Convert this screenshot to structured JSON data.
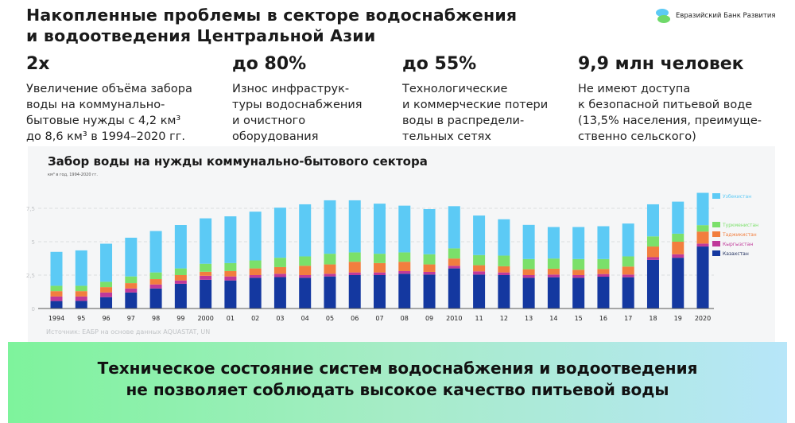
{
  "header": {
    "title_line1": "Накопленные проблемы в секторе водоснабжения",
    "title_line2": "и водоотведения Центральной Азии",
    "logo_text": "Евразийский Банк Развития"
  },
  "stats": [
    {
      "value": "2x",
      "lines": [
        "Увеличение объёма забора",
        "воды на коммунально-",
        "бытовые нужды с 4,2 км³",
        "до 8,6 км³ в 1994–2020 гг."
      ]
    },
    {
      "value": "до 80%",
      "lines": [
        "Износ инфраструк-",
        "туры водоснабжения",
        "и очистного",
        "оборудования"
      ]
    },
    {
      "value": "до 55%",
      "lines": [
        "Технологические",
        "и коммерческие потери",
        "воды в распредели-",
        "тельных сетях"
      ]
    },
    {
      "value": "9,9 млн человек",
      "lines": [
        "Не имеют доступа",
        "к безопасной питьевой воде",
        "(13,5% населения, преимуще-",
        "ственно сельского)"
      ]
    }
  ],
  "chart_data": {
    "type": "bar",
    "stacked": true,
    "title": "Забор воды на нужды коммунально-бытового сектора",
    "subtitle": "км³ в год, 1994-2020 гг.",
    "source": "Источник: ЕАБР на основе данных AQUASTAT, UN",
    "xlabel": "",
    "ylabel": "",
    "ylim": [
      0,
      9
    ],
    "yticks": [
      "0",
      "2,5",
      "5",
      "7,5"
    ],
    "ytick_values": [
      0,
      2.5,
      5,
      7.5
    ],
    "grid": true,
    "legend_position": "right",
    "categories": [
      "1994",
      "95",
      "96",
      "97",
      "98",
      "99",
      "2000",
      "01",
      "02",
      "03",
      "04",
      "05",
      "06",
      "07",
      "08",
      "09",
      "2010",
      "11",
      "12",
      "13",
      "14",
      "15",
      "16",
      "17",
      "18",
      "19",
      "2020"
    ],
    "series": [
      {
        "name": "Казахстан",
        "color": "#1438a0",
        "values": [
          0.56,
          0.57,
          0.85,
          1.2,
          1.5,
          1.85,
          2.15,
          2.1,
          2.3,
          2.35,
          2.3,
          2.4,
          2.5,
          2.5,
          2.6,
          2.54,
          3.0,
          2.54,
          2.5,
          2.3,
          2.34,
          2.3,
          2.38,
          2.34,
          3.64,
          3.8,
          4.64
        ]
      },
      {
        "name": "Кыргызстан",
        "color": "#c0399a",
        "values": [
          0.34,
          0.33,
          0.35,
          0.3,
          0.3,
          0.25,
          0.3,
          0.3,
          0.2,
          0.25,
          0.2,
          0.2,
          0.2,
          0.2,
          0.2,
          0.2,
          0.2,
          0.24,
          0.2,
          0.2,
          0.2,
          0.2,
          0.2,
          0.2,
          0.2,
          0.26,
          0.22
        ]
      },
      {
        "name": "Таджикистан",
        "color": "#f27e3e",
        "values": [
          0.4,
          0.4,
          0.4,
          0.4,
          0.4,
          0.4,
          0.3,
          0.4,
          0.5,
          0.5,
          0.7,
          0.7,
          0.8,
          0.7,
          0.7,
          0.56,
          0.54,
          0.46,
          0.46,
          0.44,
          0.44,
          0.4,
          0.38,
          0.6,
          0.8,
          0.94,
          0.9
        ]
      },
      {
        "name": "Туркменистан",
        "color": "#7be06a",
        "values": [
          0.4,
          0.4,
          0.4,
          0.5,
          0.5,
          0.5,
          0.6,
          0.6,
          0.6,
          0.7,
          0.7,
          0.8,
          0.7,
          0.7,
          0.7,
          0.76,
          0.76,
          0.76,
          0.8,
          0.76,
          0.76,
          0.8,
          0.74,
          0.76,
          0.76,
          0.6,
          0.48
        ]
      },
      {
        "name": "Узбекистан",
        "color": "#5ccaf5",
        "values": [
          2.54,
          2.65,
          2.85,
          2.9,
          3.1,
          3.25,
          3.4,
          3.5,
          3.65,
          3.75,
          3.9,
          4.0,
          3.9,
          3.75,
          3.5,
          3.38,
          3.16,
          2.96,
          2.72,
          2.56,
          2.36,
          2.4,
          2.46,
          2.46,
          2.4,
          2.4,
          2.42
        ]
      }
    ],
    "legend_order": [
      "Узбекистан",
      "Туркменистан",
      "Таджикистан",
      "Кыргызстан",
      "Казахстан"
    ]
  },
  "footer": {
    "line1": "Техническое состояние систем водоснабжения и водоотведения",
    "line2": "не позволяет соблюдать высокое качество питьевой воды"
  }
}
